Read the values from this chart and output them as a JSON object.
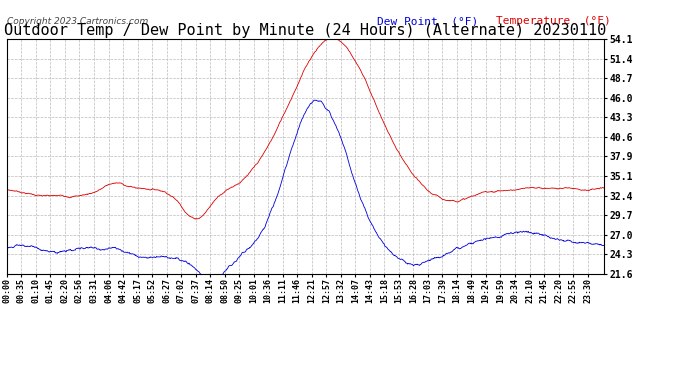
{
  "title": "Outdoor Temp / Dew Point by Minute (24 Hours) (Alternate) 20230110",
  "copyright_text": "Copyright 2023 Cartronics.com",
  "legend_dew": "Dew Point  (°F)",
  "legend_temp": "Temperature  (°F)",
  "dew_color": "#0000dd",
  "temp_color": "#dd0000",
  "background_color": "#ffffff",
  "grid_color": "#bbbbbb",
  "title_fontsize": 11,
  "yticks": [
    21.6,
    24.3,
    27.0,
    29.7,
    32.4,
    35.1,
    37.9,
    40.6,
    43.3,
    46.0,
    48.7,
    51.4,
    54.1
  ],
  "ymin": 21.6,
  "ymax": 54.1,
  "total_minutes": 1440,
  "tick_interval_min": 35,
  "xtick_labels": [
    "00:00",
    "00:35",
    "01:10",
    "01:45",
    "02:20",
    "02:56",
    "03:31",
    "04:06",
    "04:42",
    "05:17",
    "05:52",
    "06:27",
    "07:02",
    "07:37",
    "08:14",
    "08:50",
    "09:25",
    "10:01",
    "10:36",
    "11:11",
    "11:46",
    "12:21",
    "12:57",
    "13:32",
    "14:07",
    "14:43",
    "15:18",
    "15:53",
    "16:28",
    "17:03",
    "17:39",
    "18:14",
    "18:49",
    "19:24",
    "19:59",
    "20:34",
    "21:10",
    "21:45",
    "22:20",
    "22:55",
    "23:30"
  ]
}
